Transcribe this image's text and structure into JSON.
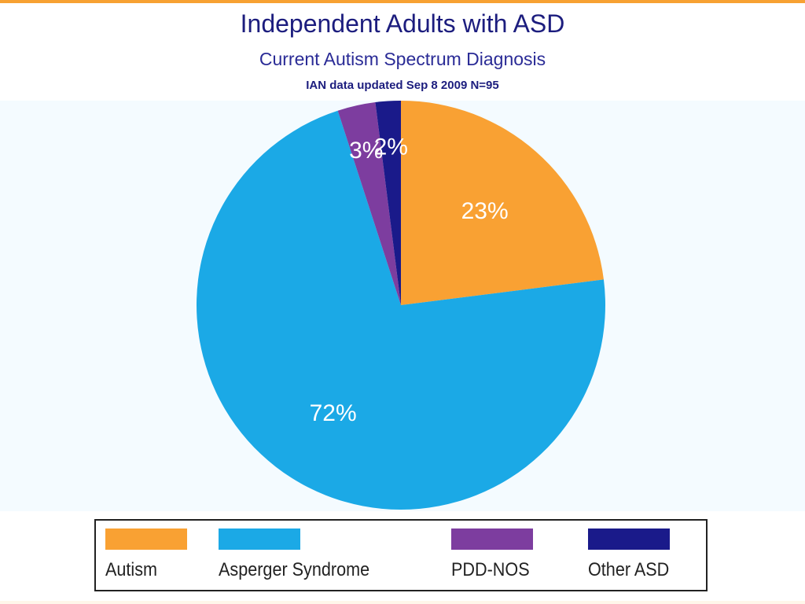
{
  "chart_data": {
    "type": "pie",
    "title": "Independent Adults with ASD",
    "subtitle": "Current Autism Spectrum Diagnosis",
    "note": "IAN data updated Sep  8 2009 N=95",
    "categories": [
      "Autism",
      "Asperger Syndrome",
      "PDD-NOS",
      "Other ASD"
    ],
    "values": [
      23,
      72,
      3,
      2
    ],
    "labels": [
      "23%",
      "72%",
      "3%",
      "2%"
    ],
    "colors": [
      "#f9a133",
      "#1ba9e6",
      "#7d3d9f",
      "#1a1a8a"
    ],
    "legend_position": "bottom",
    "start": "top-clockwise"
  }
}
